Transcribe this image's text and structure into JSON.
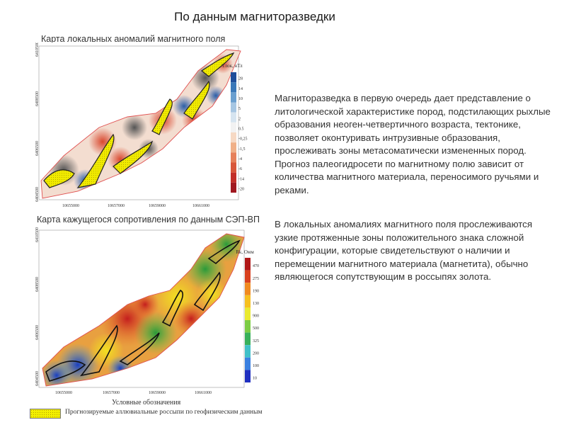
{
  "title": "По данным магниторазведки",
  "map1": {
    "caption": "Карта локальных аномалий магнитного поля",
    "legend_title": "Tлок, нТл",
    "legend_values": [
      "28",
      "14",
      "10",
      "5",
      "2",
      "0.5",
      "-0,25",
      "-1,5",
      "-4",
      "-6",
      "-14",
      "-20"
    ],
    "x_ticks": [
      "10655000",
      "10657000",
      "10659000",
      "10661000"
    ],
    "y_ticks": [
      "6410500",
      "6408500",
      "6406500",
      "6404500"
    ]
  },
  "map2": {
    "caption": "Карта кажущегося сопротивления по данным СЭП-ВП",
    "legend_title": "Rk, Омм",
    "legend_values": [
      "4700",
      "2750",
      "1900",
      "1300",
      "900",
      "500",
      "325",
      "200",
      "100",
      "10"
    ],
    "x_ticks": [
      "10655000",
      "10657000",
      "10659000",
      "10661000"
    ],
    "y_ticks": [
      "6410500",
      "6408500",
      "6406500",
      "6404500"
    ]
  },
  "paragraph1": "Магниторазведка в первую очередь дает представление о литологической характеристике пород, подстилающих рыхлые образования неоген-четвертичного возраста, тектонике, позволяет оконтуривать интрузивные образования, прослеживать зоны метасоматически измененных пород.    Прогноз палеогидросети по магнитному полю зависит от количества магнитного материала, переносимого ручьями и реками.",
  "paragraph2": "В локальных аномалиях магнитного поля прослеживаются узкие протяженные зоны положительного знака сложной конфигурации, которые свидетельствуют о наличии и перемещении магнитного материала (магнетита), обычно являющегося сопутствующим в россыпях золота.",
  "legend": {
    "heading": "Условные обозначения",
    "item_label": "Прогнозируемые аллювиальные россыпи по геофизическим данным"
  },
  "colors": {
    "boundary": "#e05050",
    "placer_fill": "#f0ea00",
    "placer_stroke": "#222222"
  }
}
